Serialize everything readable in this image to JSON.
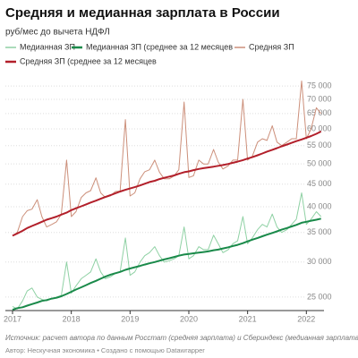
{
  "chart_data": {
    "type": "line",
    "title": "Средняя и медианная зарплата в России",
    "subtitle": "руб/мес до вычета НДФЛ",
    "source": "Источник: расчет автора по данным Росстат (средняя зарплата) и Сбериндекс (медианная зарплата)",
    "byline": "Автор: Нескучная экономика • Создано с помощью Datawrapper",
    "log_scale": true,
    "grid": true,
    "x": [
      2017,
      2017.08,
      2017.17,
      2017.25,
      2017.33,
      2017.42,
      2017.5,
      2017.58,
      2017.67,
      2017.75,
      2017.83,
      2017.92,
      2018,
      2018.08,
      2018.17,
      2018.25,
      2018.33,
      2018.42,
      2018.5,
      2018.58,
      2018.67,
      2018.75,
      2018.83,
      2018.92,
      2019,
      2019.08,
      2019.17,
      2019.25,
      2019.33,
      2019.42,
      2019.5,
      2019.58,
      2019.67,
      2019.75,
      2019.83,
      2019.92,
      2020,
      2020.08,
      2020.17,
      2020.25,
      2020.33,
      2020.42,
      2020.5,
      2020.58,
      2020.67,
      2020.75,
      2020.83,
      2020.92,
      2021,
      2021.08,
      2021.17,
      2021.25,
      2021.33,
      2021.42,
      2021.5,
      2021.58,
      2021.67,
      2021.75,
      2021.83,
      2021.92,
      2022,
      2022.08,
      2022.17,
      2022.25
    ],
    "xlim": [
      2017,
      2022.3
    ],
    "xticks": [
      2017,
      2018,
      2019,
      2020,
      2021,
      2022
    ],
    "ylim": [
      23300,
      79000
    ],
    "yticks": [
      {
        "value": 25000,
        "label": "25 000"
      },
      {
        "value": 30000,
        "label": "30 000"
      },
      {
        "value": 35000,
        "label": "35 000"
      },
      {
        "value": 40000,
        "label": "40 000"
      },
      {
        "value": 45000,
        "label": "45 000"
      },
      {
        "value": 50000,
        "label": "50 000"
      },
      {
        "value": 55000,
        "label": "55 000"
      },
      {
        "value": 60000,
        "label": "60 000"
      },
      {
        "value": 65000,
        "label": "65 000"
      },
      {
        "value": 70000,
        "label": "70 000"
      },
      {
        "value": 75000,
        "label": "75 000"
      }
    ],
    "series": [
      {
        "name": "Медианная ЗП",
        "color": "#8fd1a4",
        "width": 1,
        "values": [
          23800,
          23500,
          24500,
          25800,
          26200,
          25000,
          24700,
          24500,
          24800,
          25000,
          25200,
          30000,
          25500,
          26500,
          27500,
          28000,
          28500,
          30500,
          28500,
          27500,
          27800,
          28300,
          28500,
          34000,
          28000,
          28500,
          30000,
          31000,
          31500,
          32500,
          31000,
          30000,
          30200,
          30500,
          31000,
          36000,
          30500,
          31000,
          32500,
          32000,
          32000,
          34500,
          33000,
          31500,
          32000,
          33000,
          33500,
          38000,
          33000,
          34000,
          35500,
          36500,
          36000,
          38500,
          36000,
          35000,
          35500,
          36500,
          37500,
          43000,
          36500,
          37500,
          39000,
          38000
        ]
      },
      {
        "name": "Медианная ЗП (среднее за 12 месяцев",
        "color": "#1a8a4a",
        "width": 2,
        "values": [
          23400,
          23600,
          23700,
          23900,
          24100,
          24300,
          24500,
          24600,
          24800,
          24900,
          25100,
          25400,
          25700,
          26000,
          26300,
          26600,
          26900,
          27200,
          27500,
          27800,
          28100,
          28300,
          28500,
          28800,
          29000,
          29200,
          29400,
          29600,
          29800,
          30000,
          30200,
          30400,
          30600,
          30800,
          31000,
          31200,
          31300,
          31400,
          31500,
          31600,
          31700,
          31900,
          32000,
          32200,
          32400,
          32600,
          32800,
          33100,
          33400,
          33700,
          34000,
          34300,
          34600,
          34900,
          35200,
          35500,
          35800,
          36100,
          36400,
          36800,
          37000,
          37200,
          37400,
          37600
        ]
      },
      {
        "name": "Средняя ЗП",
        "color": "#cc8f7a",
        "width": 1,
        "values": [
          34400,
          35000,
          38000,
          39200,
          39500,
          41500,
          38000,
          36000,
          36500,
          37000,
          38500,
          51000,
          38000,
          39000,
          42000,
          43000,
          43500,
          46500,
          43000,
          42000,
          42400,
          43300,
          43400,
          63000,
          42300,
          43000,
          46300,
          48000,
          48500,
          51000,
          47900,
          46300,
          46300,
          47000,
          48500,
          69000,
          46600,
          47000,
          51000,
          50000,
          50000,
          53900,
          50500,
          48700,
          49500,
          51000,
          51000,
          70000,
          51000,
          52000,
          56000,
          57000,
          56500,
          61000,
          56000,
          55000,
          56000,
          57000,
          57000,
          77000,
          57000,
          60000,
          67000,
          65000
        ]
      },
      {
        "name": "Средняя ЗП (среднее за 12 месяцев",
        "color": "#b21f2a",
        "width": 2,
        "values": [
          34400,
          34800,
          35300,
          35800,
          36200,
          36600,
          37000,
          37400,
          37700,
          38000,
          38400,
          38800,
          39300,
          39700,
          40100,
          40500,
          40900,
          41300,
          41700,
          42100,
          42500,
          42900,
          43300,
          43700,
          44000,
          44300,
          44700,
          45100,
          45500,
          45800,
          46200,
          46500,
          46800,
          47100,
          47500,
          47900,
          48100,
          48400,
          48700,
          48900,
          49100,
          49300,
          49500,
          49700,
          50000,
          50300,
          50600,
          51000,
          51400,
          51800,
          52300,
          52800,
          53300,
          53800,
          54300,
          54800,
          55300,
          55800,
          56300,
          56800,
          57300,
          57800,
          58500,
          59200
        ]
      }
    ]
  }
}
